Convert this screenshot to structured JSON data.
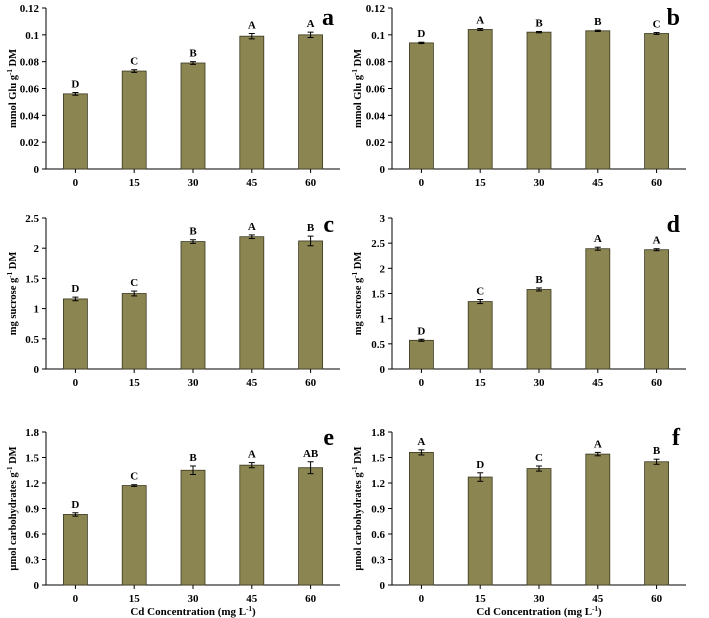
{
  "figure": {
    "xlabel": "Cd Concentration  (mg L",
    "xlabel_sup": "-1",
    "xlabel_end": ")"
  },
  "chart_data": [
    {
      "panel": "a",
      "type": "bar",
      "ylabel": {
        "pre": "mmol Glu g",
        "sup": "-1",
        "post": " DM"
      },
      "categories": [
        "0",
        "15",
        "30",
        "45",
        "60"
      ],
      "values": [
        0.056,
        0.073,
        0.079,
        0.099,
        0.1
      ],
      "errors": [
        0.001,
        0.001,
        0.001,
        0.002,
        0.002
      ],
      "letters": [
        "D",
        "C",
        "B",
        "A",
        "A"
      ],
      "ylim": [
        0,
        0.12
      ],
      "yticks": [
        "0",
        "0.02",
        "0.04",
        "0.06",
        "0.08",
        "0.1",
        "0.12"
      ],
      "xlabel": ""
    },
    {
      "panel": "b",
      "type": "bar",
      "ylabel": {
        "pre": "mmol Glu g",
        "sup": "-1",
        "post": " DM"
      },
      "categories": [
        "0",
        "15",
        "30",
        "45",
        "60"
      ],
      "values": [
        0.094,
        0.104,
        0.102,
        0.103,
        0.101
      ],
      "errors": [
        0.0005,
        0.0007,
        0.0005,
        0.0005,
        0.0007
      ],
      "letters": [
        "D",
        "A",
        "B",
        "B",
        "C"
      ],
      "ylim": [
        0,
        0.12
      ],
      "yticks": [
        "0",
        "0.02",
        "0.04",
        "0.06",
        "0.08",
        "0.1",
        "0.12"
      ],
      "xlabel": ""
    },
    {
      "panel": "c",
      "type": "bar",
      "ylabel": {
        "pre": "mg  sucrose g",
        "sup": "-1",
        "post": " DM"
      },
      "categories": [
        "0",
        "15",
        "30",
        "45",
        "60"
      ],
      "values": [
        1.16,
        1.25,
        2.11,
        2.19,
        2.12
      ],
      "errors": [
        0.03,
        0.04,
        0.03,
        0.03,
        0.08
      ],
      "letters": [
        "D",
        "C",
        "B",
        "A",
        "B"
      ],
      "ylim": [
        0,
        2.5
      ],
      "yticks": [
        "0",
        "0.5",
        "1",
        "1.5",
        "2",
        "2.5"
      ],
      "xlabel": ""
    },
    {
      "panel": "d",
      "type": "bar",
      "ylabel": {
        "pre": "mg  sucrose g",
        "sup": "-1",
        "post": " DM"
      },
      "categories": [
        "0",
        "15",
        "30",
        "45",
        "60"
      ],
      "values": [
        0.57,
        1.34,
        1.58,
        2.39,
        2.37
      ],
      "errors": [
        0.02,
        0.04,
        0.03,
        0.03,
        0.02
      ],
      "letters": [
        "D",
        "C",
        "B",
        "A",
        "A"
      ],
      "ylim": [
        0,
        3
      ],
      "yticks": [
        "0",
        "0.5",
        "1",
        "1.5",
        "2",
        "2.5",
        "3"
      ],
      "xlabel": ""
    },
    {
      "panel": "e",
      "type": "bar",
      "ylabel": {
        "pre": "µmol  carbohydrates  g",
        "sup": "-1",
        "post": " DM"
      },
      "categories": [
        "0",
        "15",
        "30",
        "45",
        "60"
      ],
      "values": [
        0.83,
        1.17,
        1.35,
        1.41,
        1.38
      ],
      "errors": [
        0.02,
        0.01,
        0.05,
        0.03,
        0.07
      ],
      "letters": [
        "D",
        "C",
        "B",
        "A",
        "AB"
      ],
      "ylim": [
        0,
        1.8
      ],
      "yticks": [
        "0",
        "0.3",
        "0.6",
        "0.9",
        "1.2",
        "1.5",
        "1.8"
      ],
      "xlabel": "Cd Concentration  (mg L-1)"
    },
    {
      "panel": "f",
      "type": "bar",
      "ylabel": {
        "pre": "µmol  carbohydrates  g",
        "sup": "-1",
        "post": " DM"
      },
      "categories": [
        "0",
        "15",
        "30",
        "45",
        "60"
      ],
      "values": [
        1.56,
        1.27,
        1.37,
        1.54,
        1.45
      ],
      "errors": [
        0.03,
        0.05,
        0.03,
        0.02,
        0.03
      ],
      "letters": [
        "A",
        "D",
        "C",
        "A",
        "B"
      ],
      "ylim": [
        0,
        1.8
      ],
      "yticks": [
        "0",
        "0.3",
        "0.6",
        "0.9",
        "1.2",
        "1.5",
        "1.8"
      ],
      "xlabel": "Cd Concentration  (mg L-1)"
    }
  ],
  "colors": {
    "bar": "#8b8552",
    "bar_stroke": "#3a3820",
    "axis": "#000000"
  }
}
